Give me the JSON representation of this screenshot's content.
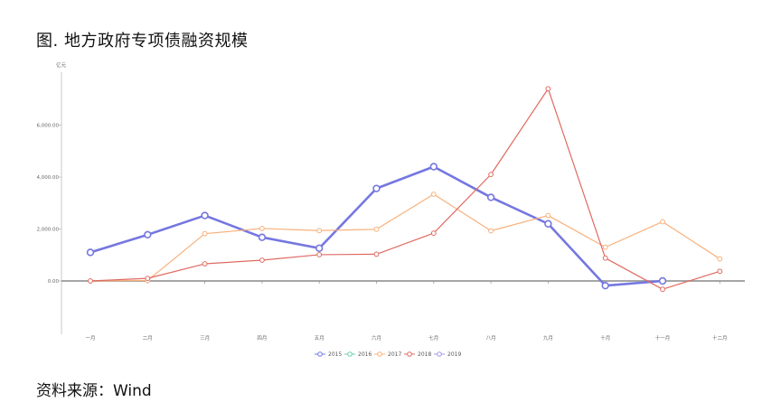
{
  "title": "图. 地方政府专项债融资规模",
  "source": "资料来源：Wind",
  "chart_data": {
    "type": "line",
    "unit_label": "亿元",
    "categories": [
      "一月",
      "二月",
      "三月",
      "四月",
      "五月",
      "六月",
      "七月",
      "八月",
      "九月",
      "十月",
      "十一月",
      "十二月"
    ],
    "ylim": [
      -2000,
      8000
    ],
    "yticks": [
      0,
      2000,
      4000,
      6000
    ],
    "ytick_labels": [
      "0.00",
      "2,000.00",
      "4,000.00",
      "6,000.00"
    ],
    "legend_position": "bottom-center",
    "grid": false,
    "series": [
      {
        "name": "2015",
        "color": "#7577e0",
        "bold": true,
        "values": [
          1100,
          1780,
          2520,
          1680,
          1260,
          3560,
          4400,
          3220,
          2200,
          -180,
          0,
          null
        ]
      },
      {
        "name": "2016",
        "color": "#6ccfa8",
        "bold": false,
        "values": [
          null,
          null,
          null,
          null,
          null,
          null,
          null,
          null,
          null,
          null,
          null,
          null
        ]
      },
      {
        "name": "2017",
        "color": "#f8b07a",
        "bold": false,
        "values": [
          0,
          20,
          1820,
          2020,
          1940,
          1990,
          3340,
          1930,
          2520,
          1300,
          2280,
          850
        ]
      },
      {
        "name": "2018",
        "color": "#e06a62",
        "bold": false,
        "values": [
          0,
          100,
          660,
          800,
          1010,
          1030,
          1840,
          4100,
          7400,
          880,
          -320,
          370
        ]
      },
      {
        "name": "2019",
        "color": "#a598e0",
        "bold": false,
        "values": [
          null,
          null,
          null,
          null,
          null,
          null,
          null,
          null,
          null,
          null,
          null,
          null
        ]
      }
    ]
  }
}
